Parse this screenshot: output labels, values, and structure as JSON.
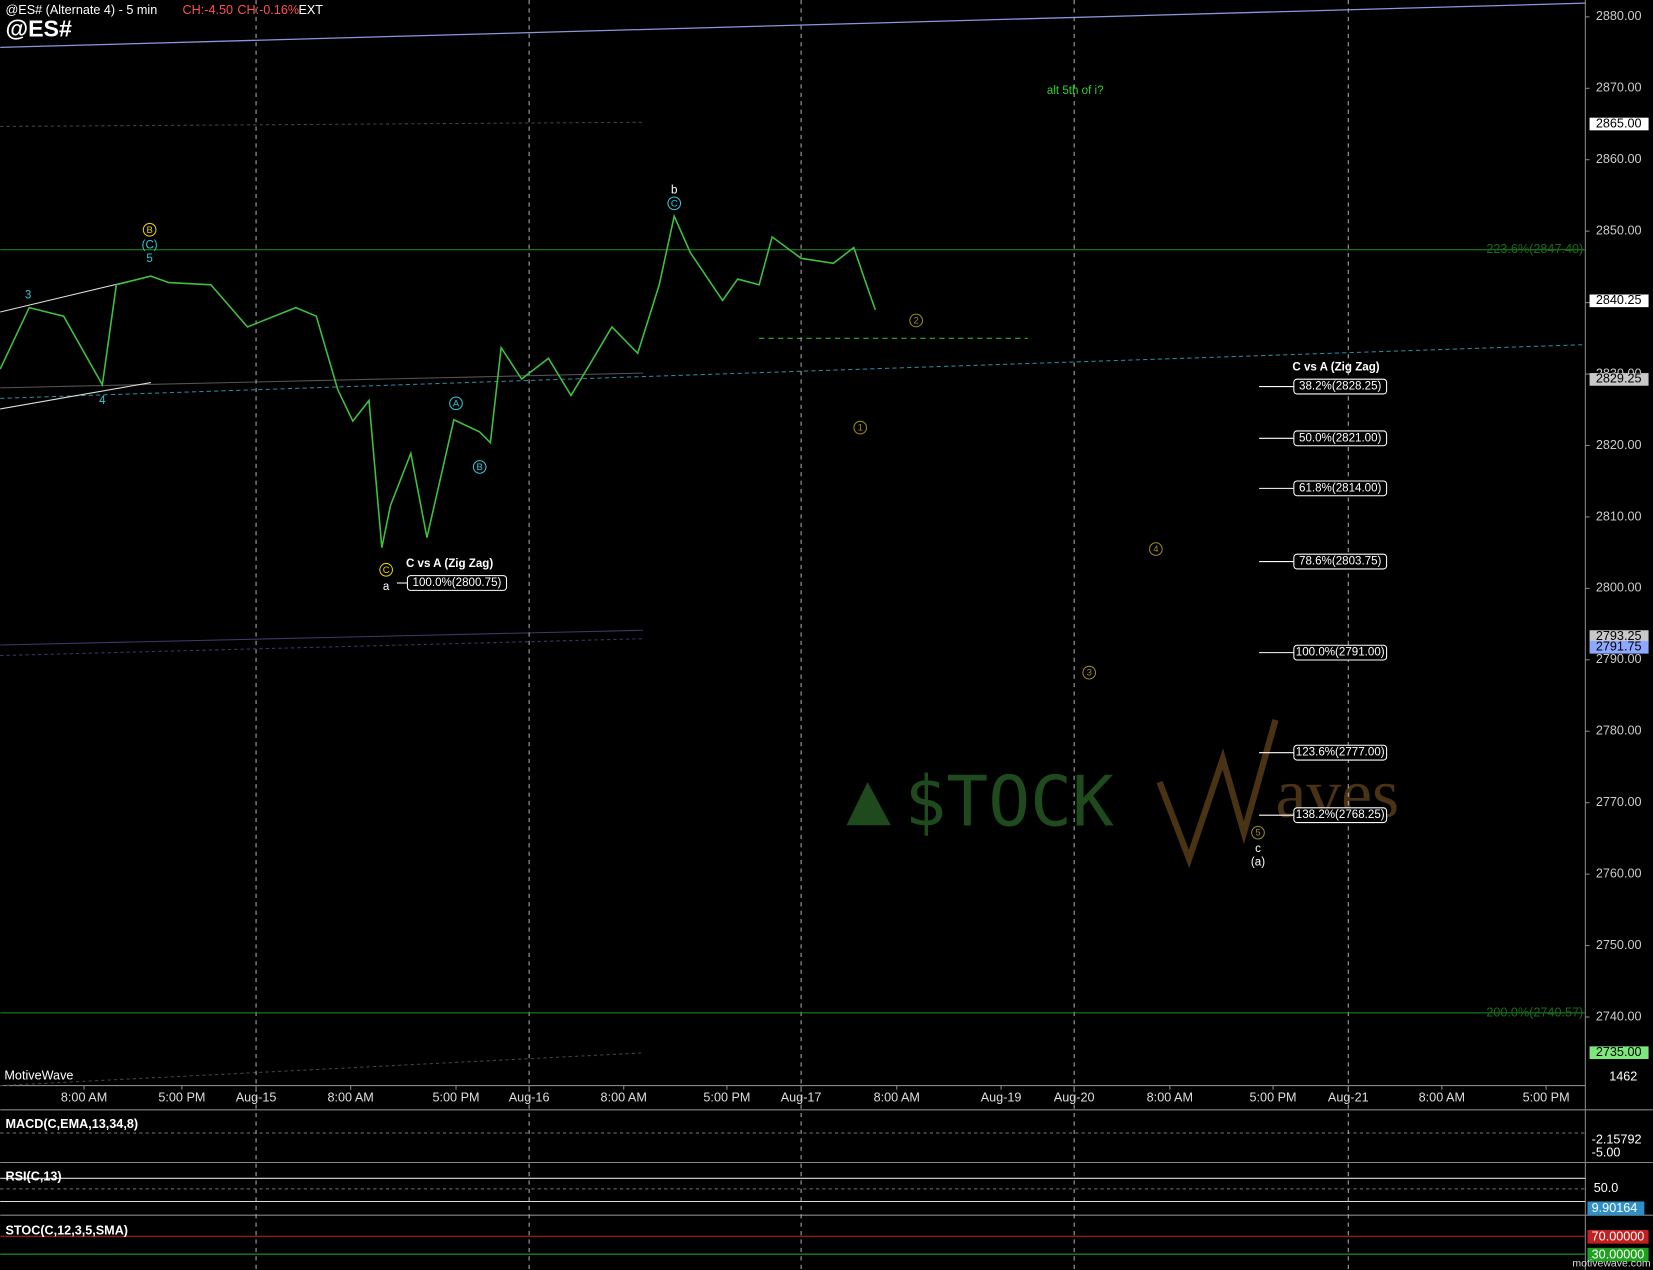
{
  "header": {
    "title": "@ES# (Alternate 4) - 5 min",
    "change": "CH:-4.50",
    "change_pct": "CH:-0.16%",
    "session": "EXT",
    "symbol": "@ES#"
  },
  "chart_data": {
    "type": "line",
    "series": [
      {
        "name": "@ES#",
        "color": "#3fbf3f",
        "x": [
          0,
          2.7,
          5.9,
          9.5,
          10.8,
          14.0,
          15.7,
          19.6,
          23.0,
          27.5,
          29.4,
          31.4,
          32.8,
          34.3,
          35.5,
          36.3,
          38.2,
          39.7,
          42.2,
          44.6,
          45.6,
          46.6,
          48.5,
          51.0,
          53.1,
          54.9,
          56.9,
          59.3,
          61.3,
          62.7,
          64.2,
          67.2,
          68.6,
          70.6,
          71.8,
          74.5,
          77.5,
          79.4,
          80.4,
          81.4
        ],
        "values": [
          2830.7,
          2839.3,
          2838.1,
          2828.5,
          2842.5,
          2843.7,
          2842.8,
          2842.5,
          2836.6,
          2839.3,
          2838.1,
          2827.8,
          2823.4,
          2826.3,
          2805.7,
          2811.6,
          2818.9,
          2807.1,
          2823.6,
          2821.9,
          2820.4,
          2833.7,
          2829.3,
          2832.2,
          2827.0,
          2831.5,
          2836.6,
          2832.9,
          2842.5,
          2852.1,
          2847.0,
          2840.3,
          2843.3,
          2842.5,
          2849.2,
          2846.2,
          2845.5,
          2847.7,
          2843.3,
          2839.0
        ]
      }
    ],
    "xlim": [
      0,
      147.45
    ],
    "ylim": [
      2730.4,
      2882.36
    ],
    "xticks": [
      {
        "value": 7.8,
        "label": "8:00 AM"
      },
      {
        "value": 16.9,
        "label": "5:00 PM"
      },
      {
        "value": 23.8,
        "label": "Aug-15"
      },
      {
        "value": 32.6,
        "label": "8:00 AM"
      },
      {
        "value": 42.4,
        "label": "5:00 PM"
      },
      {
        "value": 49.2,
        "label": "Aug-16"
      },
      {
        "value": 58.0,
        "label": "8:00 AM"
      },
      {
        "value": 67.6,
        "label": "5:00 PM"
      },
      {
        "value": 74.5,
        "label": "Aug-17"
      },
      {
        "value": 83.4,
        "label": "8:00 AM"
      },
      {
        "value": 93.1,
        "label": "Aug-19"
      },
      {
        "value": 99.9,
        "label": "Aug-20"
      },
      {
        "value": 108.8,
        "label": "8:00 AM"
      },
      {
        "value": 118.4,
        "label": "5:00 PM"
      },
      {
        "value": 125.4,
        "label": "Aug-21"
      },
      {
        "value": 134.1,
        "label": "8:00 AM"
      },
      {
        "value": 143.8,
        "label": "5:00 PM"
      }
    ],
    "day_separators": [
      23.8,
      49.2,
      74.5,
      99.9,
      125.4
    ],
    "yticks": [
      {
        "value": 2740,
        "label": "2740.00"
      },
      {
        "value": 2750,
        "label": "2750.00"
      },
      {
        "value": 2760,
        "label": "2760.00"
      },
      {
        "value": 2770,
        "label": "2770.00"
      },
      {
        "value": 2780,
        "label": "2780.00"
      },
      {
        "value": 2790,
        "label": "2790.00"
      },
      {
        "value": 2800,
        "label": "2800.00"
      },
      {
        "value": 2810,
        "label": "2810.00"
      },
      {
        "value": 2820,
        "label": "2820.00"
      },
      {
        "value": 2830,
        "label": "2830.00"
      },
      {
        "value": 2840,
        "label": "2840.00"
      },
      {
        "value": 2850,
        "label": "2850.00"
      },
      {
        "value": 2860,
        "label": "2860.00"
      },
      {
        "value": 2870,
        "label": "2870.00"
      },
      {
        "value": 2880,
        "label": "2880.00"
      }
    ],
    "price_markers": [
      {
        "value": 2865,
        "label": "2865.00",
        "color": "#ffffff"
      },
      {
        "value": 2840.25,
        "label": "2840.25",
        "color": "#ffffff"
      },
      {
        "value": 2829.25,
        "label": "2829.25",
        "color": "#c8c8c8"
      },
      {
        "value": 2793.25,
        "label": "2793.25",
        "color": "#c8c8c8"
      },
      {
        "value": 2791.75,
        "label": "2791.75",
        "color": "#8fa8ff"
      },
      {
        "value": 2735,
        "label": "2735.00",
        "color": "#7ce87c"
      }
    ],
    "fib_lines": [
      {
        "label": "223.6%(2847.40)",
        "value": 2847.4
      },
      {
        "label": "200.0%(2740.57)",
        "value": 2740.57
      }
    ],
    "projection": {
      "title": "C vs A (Zig Zag)",
      "x": 117.1,
      "levels": [
        {
          "label": "38.2%(2828.25)",
          "value": 2828.25
        },
        {
          "label": "50.0%(2821.00)",
          "value": 2821
        },
        {
          "label": "61.8%(2814.00)",
          "value": 2814
        },
        {
          "label": "78.6%(2803.75)",
          "value": 2803.75
        },
        {
          "label": "100.0%(2791.00)",
          "value": 2791
        },
        {
          "label": "123.6%(2777.00)",
          "value": 2777
        },
        {
          "label": "138.2%(2768.25)",
          "value": 2768.25
        }
      ]
    },
    "left_projection": {
      "title": "C vs A (Zig Zag)",
      "x": 36.9,
      "levels": [
        {
          "label": "100.0%(2800.75)",
          "value": 2800.75
        }
      ]
    },
    "annotations": [
      {
        "text": "B",
        "x": 13.9,
        "y": 2850.2,
        "color": "#e8d000",
        "circled": true
      },
      {
        "text": "(C)",
        "x": 13.9,
        "y": 2848.1,
        "color": "#2fc8d8",
        "circled": false
      },
      {
        "text": "5",
        "x": 13.9,
        "y": 2846.2,
        "color": "#2fc8d8",
        "circled": false
      },
      {
        "text": "3",
        "x": 2.6,
        "y": 2841.1,
        "color": "#2fc8d8",
        "circled": false
      },
      {
        "text": "4",
        "x": 9.5,
        "y": 2826.3,
        "color": "#2fc8d8",
        "circled": false
      },
      {
        "text": "A",
        "x": 42.4,
        "y": 2825.9,
        "color": "#2fc8d8",
        "circled": true
      },
      {
        "text": "B",
        "x": 44.6,
        "y": 2817.0,
        "color": "#2fc8d8",
        "circled": true
      },
      {
        "text": "C",
        "x": 35.9,
        "y": 2802.6,
        "color": "#e8d000",
        "circled": true
      },
      {
        "text": "a",
        "x": 35.9,
        "y": 2800.3,
        "color": "#ffffff",
        "circled": false
      },
      {
        "text": "b",
        "x": 62.7,
        "y": 2855.8,
        "color": "#ffffff",
        "circled": false
      },
      {
        "text": "C",
        "x": 62.7,
        "y": 2853.9,
        "color": "#2fc8d8",
        "circled": true
      },
      {
        "text": "2",
        "x": 85.2,
        "y": 2837.5,
        "color": "#9a8a20",
        "circled": true
      },
      {
        "text": "1",
        "x": 80.0,
        "y": 2822.5,
        "color": "#9a8a20",
        "circled": true
      },
      {
        "text": "4",
        "x": 107.5,
        "y": 2805.5,
        "color": "#9a8a20",
        "circled": true
      },
      {
        "text": "3",
        "x": 101.3,
        "y": 2788.2,
        "color": "#9a8a20",
        "circled": true
      },
      {
        "text": "5",
        "x": 117.0,
        "y": 2765.8,
        "color": "#9a8a20",
        "circled": true
      },
      {
        "text": "c",
        "x": 117.0,
        "y": 2763.6,
        "color": "#ffffff",
        "circled": false
      },
      {
        "text": "(a)",
        "x": 117.0,
        "y": 2761.7,
        "color": "#ffffff",
        "circled": false
      },
      {
        "text": "alt 5th of i?",
        "x": 100.0,
        "y": 2869.7,
        "color": "#2fd02f",
        "circled": false
      }
    ],
    "volume_label": "1462",
    "source": "MotiveWave",
    "watermark": {
      "left": "$TOCK",
      "right": "aves"
    },
    "indicators": [
      {
        "name": "MACD(C,EMA,13,34,8)",
        "labels": [
          "-2.15792",
          "-5.00"
        ]
      },
      {
        "name": "RSI(C,13)",
        "labels": [
          "50.0",
          "9.90164"
        ]
      },
      {
        "name": "STOC(C,12,3,5,SMA)",
        "labels": [
          "70.00000",
          "30.00000"
        ]
      }
    ],
    "footer": "motivewave.com"
  }
}
